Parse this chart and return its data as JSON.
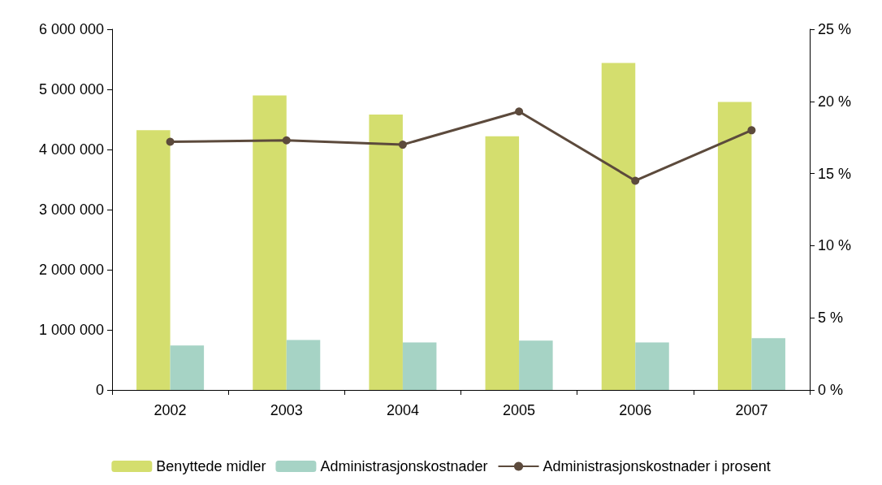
{
  "chart_data": {
    "type": "bar",
    "categories": [
      "2002",
      "2003",
      "2004",
      "2005",
      "2006",
      "2007"
    ],
    "series": [
      {
        "name": "Benyttede midler",
        "color": "#d4de6e",
        "values": [
          4320000,
          4900000,
          4580000,
          4220000,
          5440000,
          4790000
        ]
      },
      {
        "name": "Administrasjonskostnader",
        "color": "#a6d3c5",
        "values": [
          740000,
          830000,
          790000,
          820000,
          790000,
          860000
        ]
      },
      {
        "name": "Administrasjonskostnader i prosent",
        "type": "line",
        "axis": "y2",
        "color": "#5c4a3c",
        "values": [
          17.2,
          17.3,
          17.0,
          19.3,
          14.5,
          18.0
        ]
      }
    ],
    "ylim": [
      0,
      6000000
    ],
    "yticks": [
      {
        "value": 0,
        "label": "0"
      },
      {
        "value": 1000000,
        "label": "1 000 000"
      },
      {
        "value": 2000000,
        "label": "2 000 000"
      },
      {
        "value": 3000000,
        "label": "3 000 000"
      },
      {
        "value": 4000000,
        "label": "4 000 000"
      },
      {
        "value": 5000000,
        "label": "5 000 000"
      },
      {
        "value": 6000000,
        "label": "6 000 000"
      }
    ],
    "y2lim": [
      0,
      25
    ],
    "y2ticks": [
      {
        "value": 0,
        "label": "0 %"
      },
      {
        "value": 5,
        "label": "5 %"
      },
      {
        "value": 10,
        "label": "10 %"
      },
      {
        "value": 15,
        "label": "15 %"
      },
      {
        "value": 20,
        "label": "20 %"
      },
      {
        "value": 25,
        "label": "25 %"
      }
    ],
    "grid": false,
    "legend": "bottom",
    "marker": "circle",
    "line_style": "solid"
  }
}
